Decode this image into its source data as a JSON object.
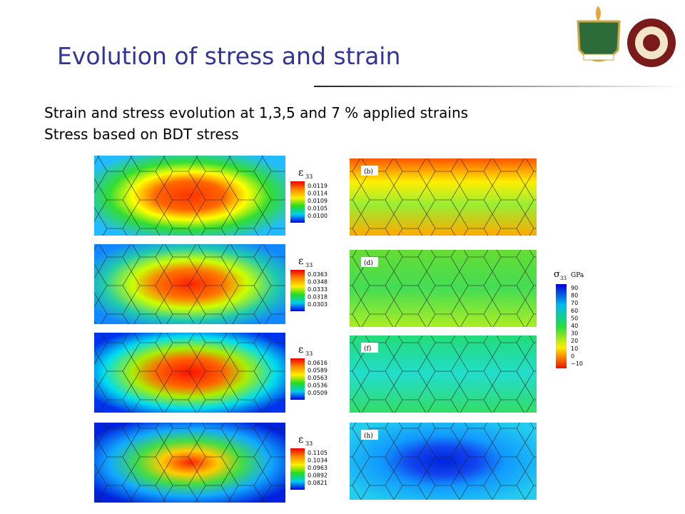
{
  "header": {
    "title": "Evolution of stress and strain"
  },
  "body": {
    "lines": [
      "Strain and stress evolution at 1,3,5 and 7 % applied strains",
      "Stress based on BDT stress"
    ]
  },
  "strain_panels": [
    {
      "symbol": "ε",
      "subscript": "33",
      "ticks": [
        "0.0119",
        "0.0114",
        "0.0109",
        "0.0105",
        "0.0100"
      ]
    },
    {
      "symbol": "ε",
      "subscript": "33",
      "ticks": [
        "0.0363",
        "0.0348",
        "0.0333",
        "0.0318",
        "0.0303"
      ]
    },
    {
      "symbol": "ε",
      "subscript": "33",
      "ticks": [
        "0.0616",
        "0.0589",
        "0.0563",
        "0.0536",
        "0.0509"
      ]
    },
    {
      "symbol": "ε",
      "subscript": "33",
      "ticks": [
        "0.1105",
        "0.1034",
        "0.0963",
        "0.0892",
        "0.0821"
      ]
    }
  ],
  "stress_panels": [
    {
      "label": "(b)"
    },
    {
      "label": "(d)"
    },
    {
      "label": "(f)"
    },
    {
      "label": "(h)"
    }
  ],
  "stress_legend": {
    "symbol": "σ",
    "subscript": "33",
    "unit": "GPa",
    "ticks": [
      "90",
      "80",
      "70",
      "60",
      "50",
      "40",
      "30",
      "20",
      "10",
      "0",
      "−10"
    ]
  }
}
